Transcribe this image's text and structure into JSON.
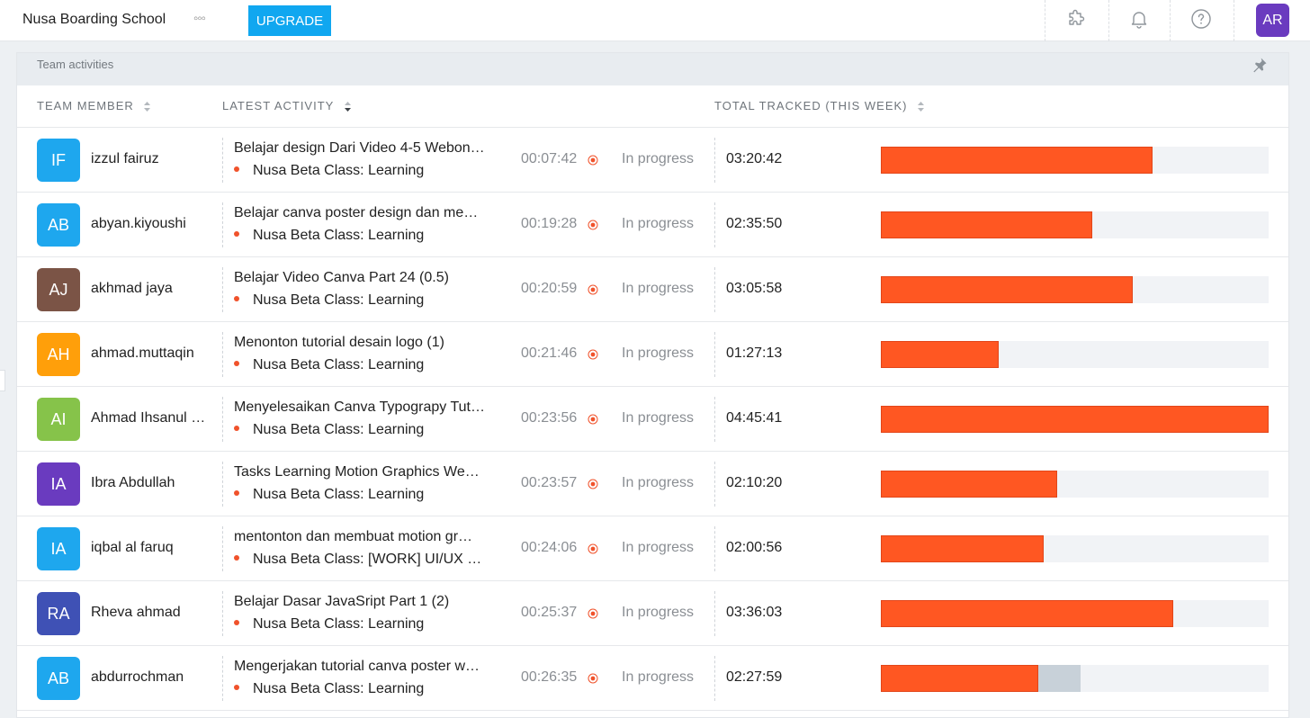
{
  "topbar": {
    "workspace": "Nusa Boarding School",
    "more": "◦◦◦",
    "upgrade_label": "UPGRADE",
    "user_initials": "AR",
    "user_color": "#6a3bbf"
  },
  "panel": {
    "title": "Team activities",
    "columns": {
      "member": "TEAM MEMBER",
      "activity": "LATEST ACTIVITY",
      "total": "TOTAL TRACKED (THIS WEEK)"
    }
  },
  "colors": {
    "bar": "#ff5722",
    "bar_track": "#f1f3f6",
    "bar_pending": "#c8d1d9",
    "bullet": "#f0522b"
  },
  "rows": [
    {
      "initials": "IF",
      "color": "#1ea7ee",
      "name": "izzul fairuz",
      "activity": "Belajar design Dari Video 4-5 Webon…",
      "project": "Nusa Beta Class: Learning",
      "duration": "00:07:42",
      "status": "In progress",
      "total": "03:20:42",
      "progress": 0.7
    },
    {
      "initials": "AB",
      "color": "#1ea7ee",
      "name": "abyan.kiyoushi",
      "activity": "Belajar canva poster design dan me…",
      "project": "Nusa Beta Class: Learning",
      "duration": "00:19:28",
      "status": "In progress",
      "total": "02:35:50",
      "progress": 0.545
    },
    {
      "initials": "AJ",
      "color": "#7b5446",
      "name": "akhmad jaya",
      "activity": "Belajar Video Canva Part 24 (0.5)",
      "project": "Nusa Beta Class: Learning",
      "duration": "00:20:59",
      "status": "In progress",
      "total": "03:05:58",
      "progress": 0.65
    },
    {
      "initials": "AH",
      "color": "#ff9f0a",
      "name": "ahmad.muttaqin",
      "activity": "Menonton tutorial desain logo (1)",
      "project": "Nusa Beta Class: Learning",
      "duration": "00:21:46",
      "status": "In progress",
      "total": "01:27:13",
      "progress": 0.305
    },
    {
      "initials": "AI",
      "color": "#86c34a",
      "name": "Ahmad Ihsanul Hakim",
      "activity": "Menyelesaikan Canva Typograpy Tutorial",
      "project": "Nusa Beta Class: Learning",
      "duration": "00:23:56",
      "status": "In progress",
      "total": "04:45:41",
      "progress": 1.0
    },
    {
      "initials": "IA",
      "color": "#6a3bbf",
      "name": "Ibra Abdullah",
      "activity": "Tasks Learning Motion Graphics We…",
      "project": "Nusa Beta Class: Learning",
      "duration": "00:23:57",
      "status": "In progress",
      "total": "02:10:20",
      "progress": 0.455
    },
    {
      "initials": "IA",
      "color": "#1ea7ee",
      "name": "iqbal al faruq",
      "activity": "mentonton dan membuat motion gr…",
      "project": "Nusa Beta Class: [WORK] UI/UX …",
      "duration": "00:24:06",
      "status": "In progress",
      "total": "02:00:56",
      "progress": 0.42
    },
    {
      "initials": "RA",
      "color": "#3f51b5",
      "name": "Rheva ahmad",
      "activity": "Belajar Dasar JavaSript Part 1 (2)",
      "project": "Nusa Beta Class: Learning",
      "duration": "00:25:37",
      "status": "In progress",
      "total": "03:36:03",
      "progress": 0.755
    },
    {
      "initials": "AB",
      "color": "#1ea7ee",
      "name": "abdurrochman",
      "activity": "Mengerjakan tutorial canva poster w…",
      "project": "Nusa Beta Class: Learning",
      "duration": "00:26:35",
      "status": "In progress",
      "total": "02:27:59",
      "progress": 0.405,
      "pending": 0.11
    }
  ]
}
